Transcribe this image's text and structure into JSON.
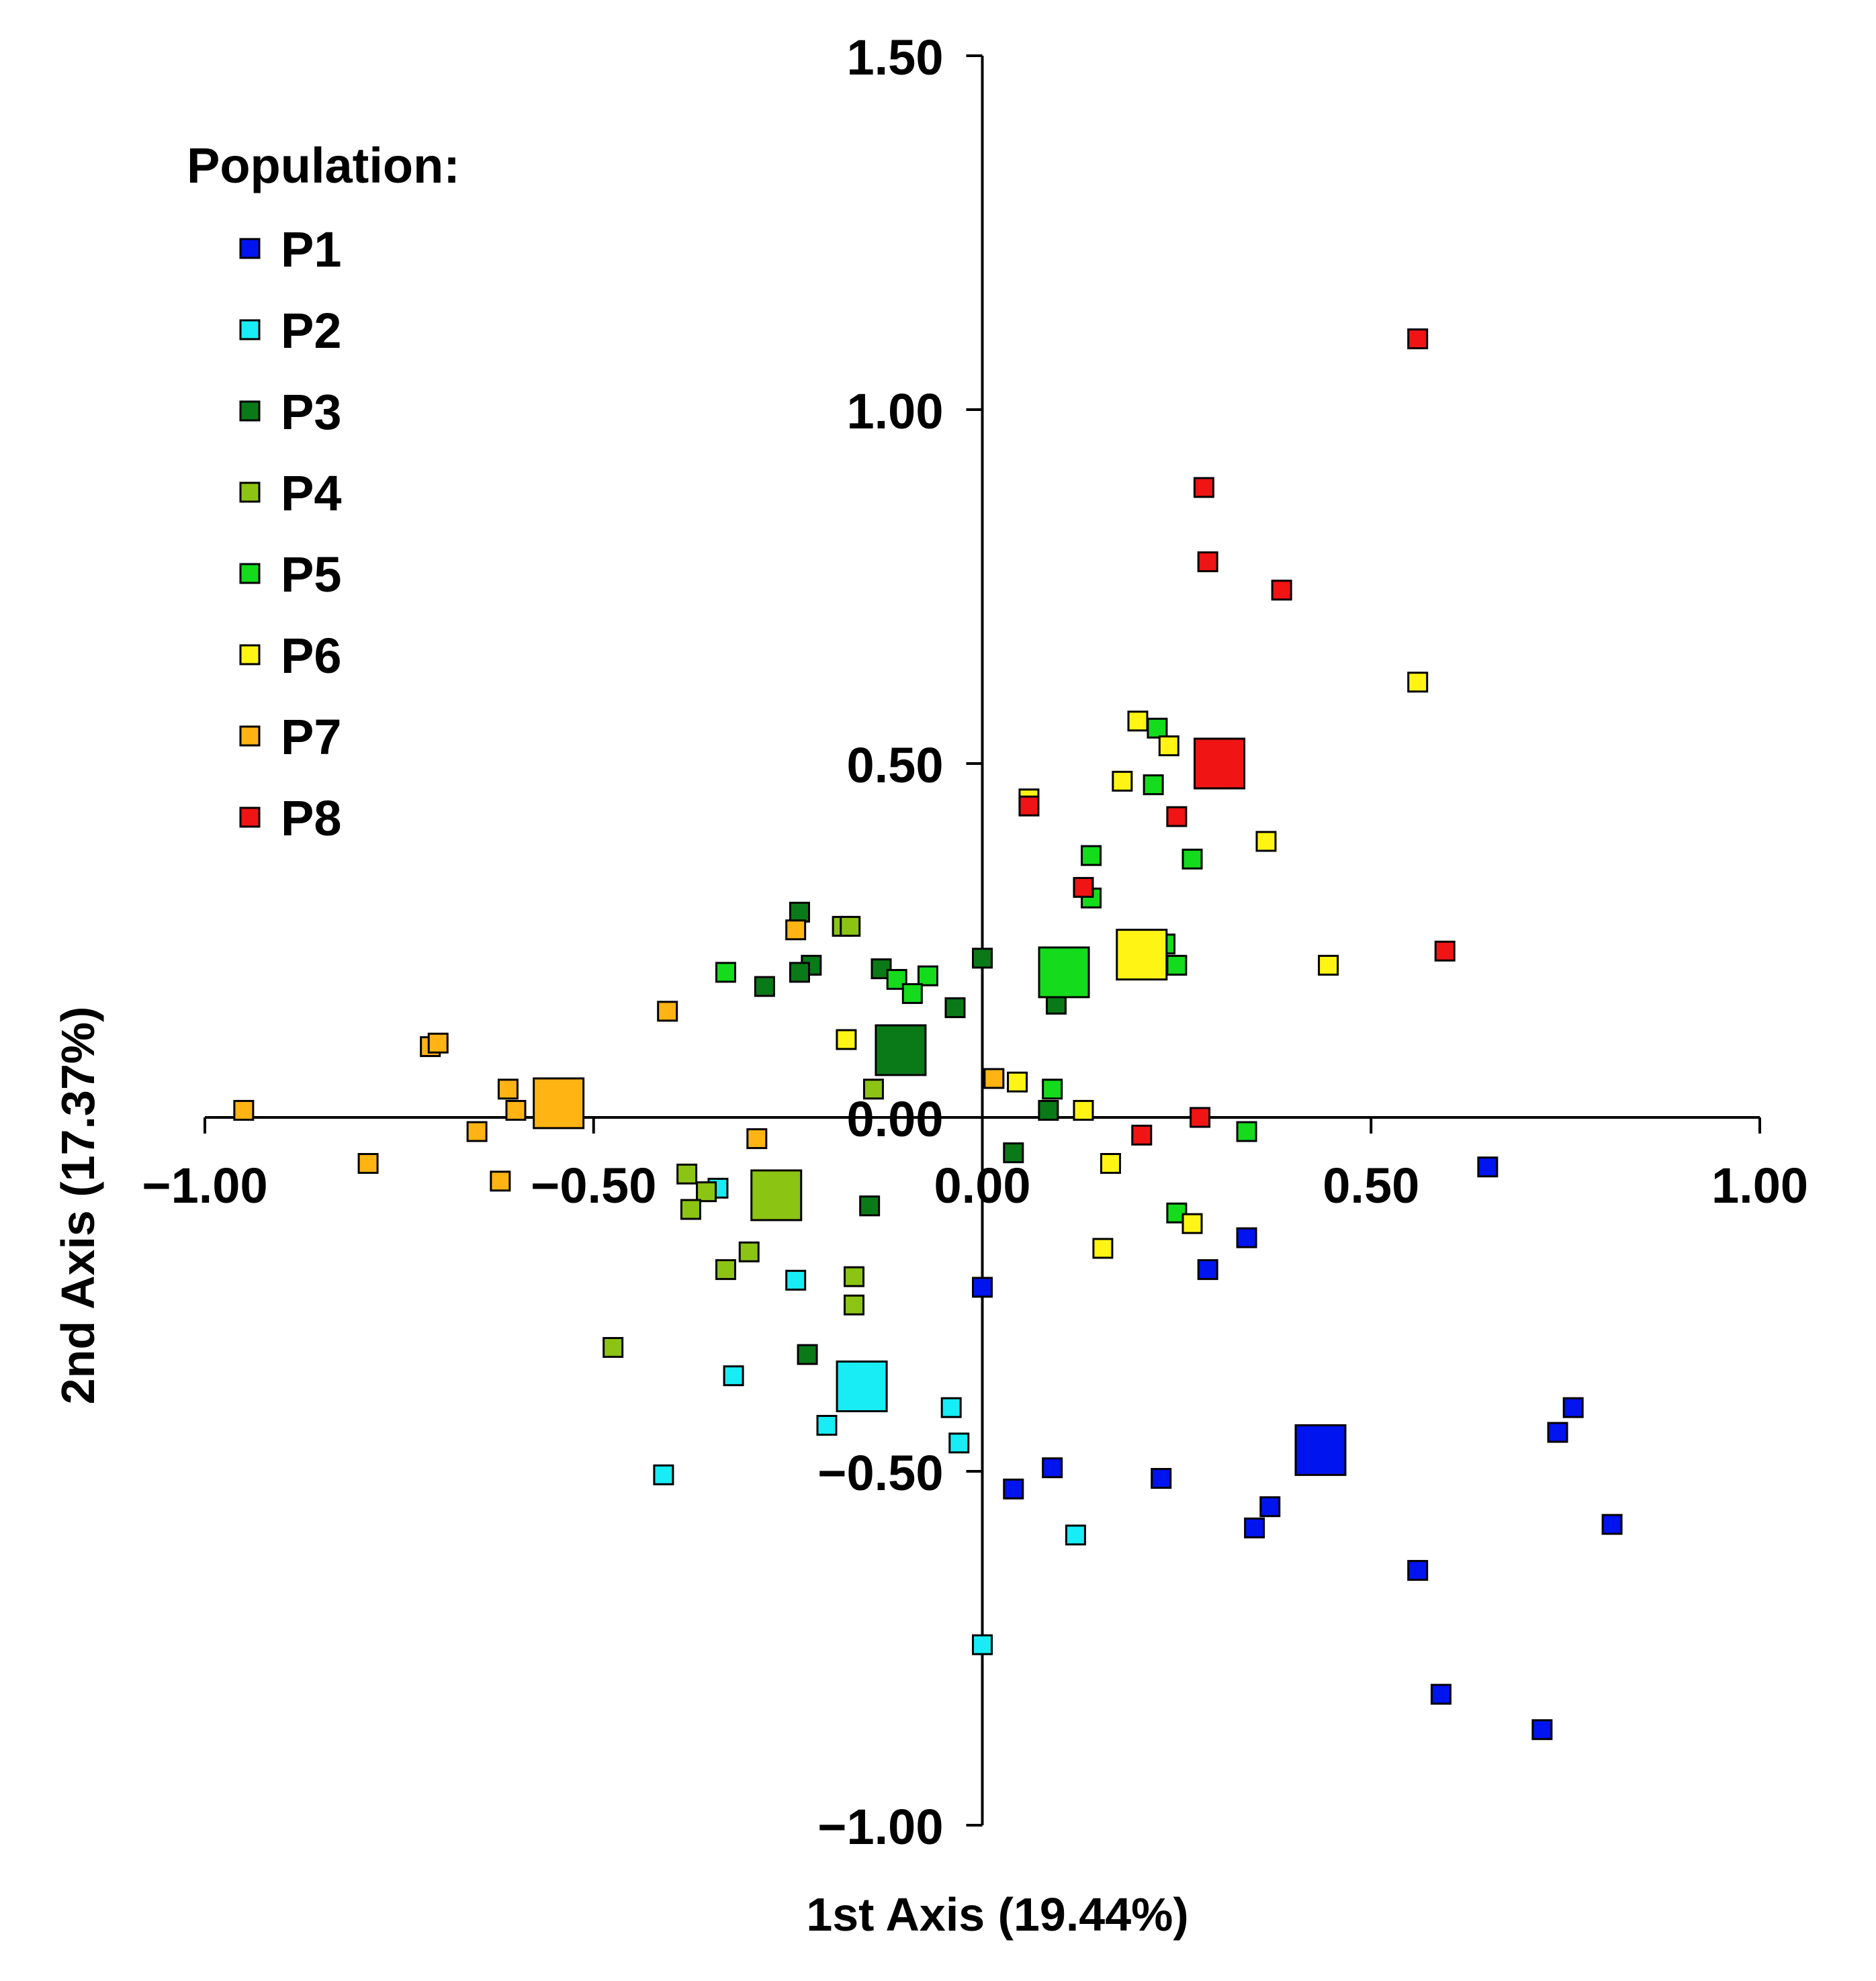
{
  "chart_data": {
    "type": "scatter",
    "title": "",
    "xlabel": "1st Axis (19.44%)",
    "ylabel": "2nd Axis (17.37%)",
    "xlim": [
      -1.0,
      1.0
    ],
    "ylim": [
      -1.0,
      1.5
    ],
    "x_ticks": [
      {
        "value": -1.0,
        "label": "−1.00"
      },
      {
        "value": -0.5,
        "label": "−0.50"
      },
      {
        "value": 0.0,
        "label": "0.00"
      },
      {
        "value": 0.5,
        "label": "0.50"
      },
      {
        "value": 1.0,
        "label": "1.00"
      }
    ],
    "y_ticks": [
      {
        "value": 1.5,
        "label": "1.50"
      },
      {
        "value": 1.0,
        "label": "1.00"
      },
      {
        "value": 0.5,
        "label": "0.50"
      },
      {
        "value": 0.0,
        "label": "0.00"
      },
      {
        "value": -0.5,
        "label": "−0.50"
      },
      {
        "value": -1.0,
        "label": "−1.00"
      }
    ],
    "grid": false,
    "legend": {
      "title": "Population:",
      "position": "top-left"
    },
    "series": [
      {
        "name": "P1",
        "color": "#0014f0",
        "points": [
          [
            0.65,
            -0.07
          ],
          [
            0.34,
            -0.17
          ],
          [
            0.29,
            -0.215
          ],
          [
            0.0,
            -0.24
          ],
          [
            0.35,
            -0.58
          ],
          [
            0.37,
            -0.55
          ],
          [
            0.23,
            -0.51
          ],
          [
            0.09,
            -0.495
          ],
          [
            0.04,
            -0.525
          ],
          [
            0.56,
            -0.64
          ],
          [
            0.74,
            -0.445
          ],
          [
            0.76,
            -0.41
          ],
          [
            0.81,
            -0.575
          ],
          [
            0.59,
            -0.815
          ],
          [
            0.72,
            -0.865
          ]
        ],
        "centroid": [
          0.435,
          -0.47
        ]
      },
      {
        "name": "P2",
        "color": "#18ecf4",
        "points": [
          [
            -0.34,
            -0.1
          ],
          [
            -0.24,
            -0.23
          ],
          [
            -0.32,
            -0.365
          ],
          [
            -0.2,
            -0.435
          ],
          [
            -0.04,
            -0.41
          ],
          [
            -0.03,
            -0.46
          ],
          [
            -0.41,
            -0.505
          ],
          [
            0.12,
            -0.59
          ],
          [
            0.0,
            -0.745
          ]
        ],
        "centroid": [
          -0.155,
          -0.38
        ]
      },
      {
        "name": "P3",
        "color": "#0a7a18",
        "points": [
          [
            -0.235,
            0.29
          ],
          [
            -0.22,
            0.215
          ],
          [
            -0.235,
            0.205
          ],
          [
            -0.28,
            0.185
          ],
          [
            -0.13,
            0.21
          ],
          [
            0.0,
            0.225
          ],
          [
            -0.035,
            0.155
          ],
          [
            0.095,
            0.16
          ],
          [
            0.04,
            -0.05
          ],
          [
            0.085,
            0.01
          ],
          [
            -0.145,
            -0.125
          ],
          [
            -0.225,
            -0.335
          ]
        ],
        "centroid": [
          -0.105,
          0.095
        ]
      },
      {
        "name": "P4",
        "color": "#8cc414",
        "points": [
          [
            -0.18,
            0.27
          ],
          [
            -0.17,
            0.27
          ],
          [
            -0.38,
            -0.08
          ],
          [
            -0.355,
            -0.105
          ],
          [
            -0.375,
            -0.13
          ],
          [
            -0.3,
            -0.19
          ],
          [
            -0.33,
            -0.215
          ],
          [
            -0.165,
            -0.225
          ],
          [
            -0.165,
            -0.265
          ],
          [
            -0.475,
            -0.325
          ],
          [
            -0.14,
            0.04
          ]
        ],
        "centroid": [
          -0.265,
          -0.11
        ]
      },
      {
        "name": "P5",
        "color": "#14dc1c",
        "points": [
          [
            0.225,
            0.55
          ],
          [
            0.22,
            0.47
          ],
          [
            0.14,
            0.37
          ],
          [
            0.27,
            0.365
          ],
          [
            0.14,
            0.31
          ],
          [
            -0.33,
            0.205
          ],
          [
            -0.11,
            0.195
          ],
          [
            -0.07,
            0.2
          ],
          [
            -0.09,
            0.175
          ],
          [
            0.09,
            0.04
          ],
          [
            0.235,
            0.245
          ],
          [
            0.25,
            0.215
          ],
          [
            0.34,
            -0.02
          ],
          [
            0.25,
            -0.135
          ]
        ],
        "centroid": [
          0.105,
          0.205
        ]
      },
      {
        "name": "P6",
        "color": "#fff414",
        "points": [
          [
            0.2,
            0.56
          ],
          [
            0.24,
            0.525
          ],
          [
            0.18,
            0.475
          ],
          [
            0.06,
            0.45
          ],
          [
            0.365,
            0.39
          ],
          [
            0.56,
            0.615
          ],
          [
            0.445,
            0.215
          ],
          [
            -0.175,
            0.11
          ],
          [
            0.045,
            0.05
          ],
          [
            0.13,
            0.01
          ],
          [
            0.165,
            -0.065
          ],
          [
            0.27,
            -0.15
          ],
          [
            0.155,
            -0.185
          ]
        ],
        "centroid": [
          0.205,
          0.23
        ]
      },
      {
        "name": "P7",
        "color": "#ffb414",
        "points": [
          [
            -0.95,
            0.01
          ],
          [
            -0.71,
            0.1
          ],
          [
            -0.7,
            0.105
          ],
          [
            -0.61,
            0.04
          ],
          [
            -0.6,
            0.01
          ],
          [
            -0.65,
            -0.02
          ],
          [
            -0.405,
            0.15
          ],
          [
            -0.29,
            -0.03
          ],
          [
            -0.79,
            -0.065
          ],
          [
            -0.62,
            -0.09
          ],
          [
            -0.24,
            0.265
          ],
          [
            0.015,
            0.055
          ]
        ],
        "centroid": [
          -0.545,
          0.02
        ]
      },
      {
        "name": "P8",
        "color": "#f01414",
        "points": [
          [
            0.56,
            1.1
          ],
          [
            0.285,
            0.89
          ],
          [
            0.29,
            0.785
          ],
          [
            0.385,
            0.745
          ],
          [
            0.06,
            0.44
          ],
          [
            0.25,
            0.425
          ],
          [
            0.13,
            0.325
          ],
          [
            0.595,
            0.235
          ],
          [
            0.28,
            0.0
          ],
          [
            0.205,
            -0.025
          ]
        ],
        "centroid": [
          0.305,
          0.5
        ]
      }
    ]
  }
}
